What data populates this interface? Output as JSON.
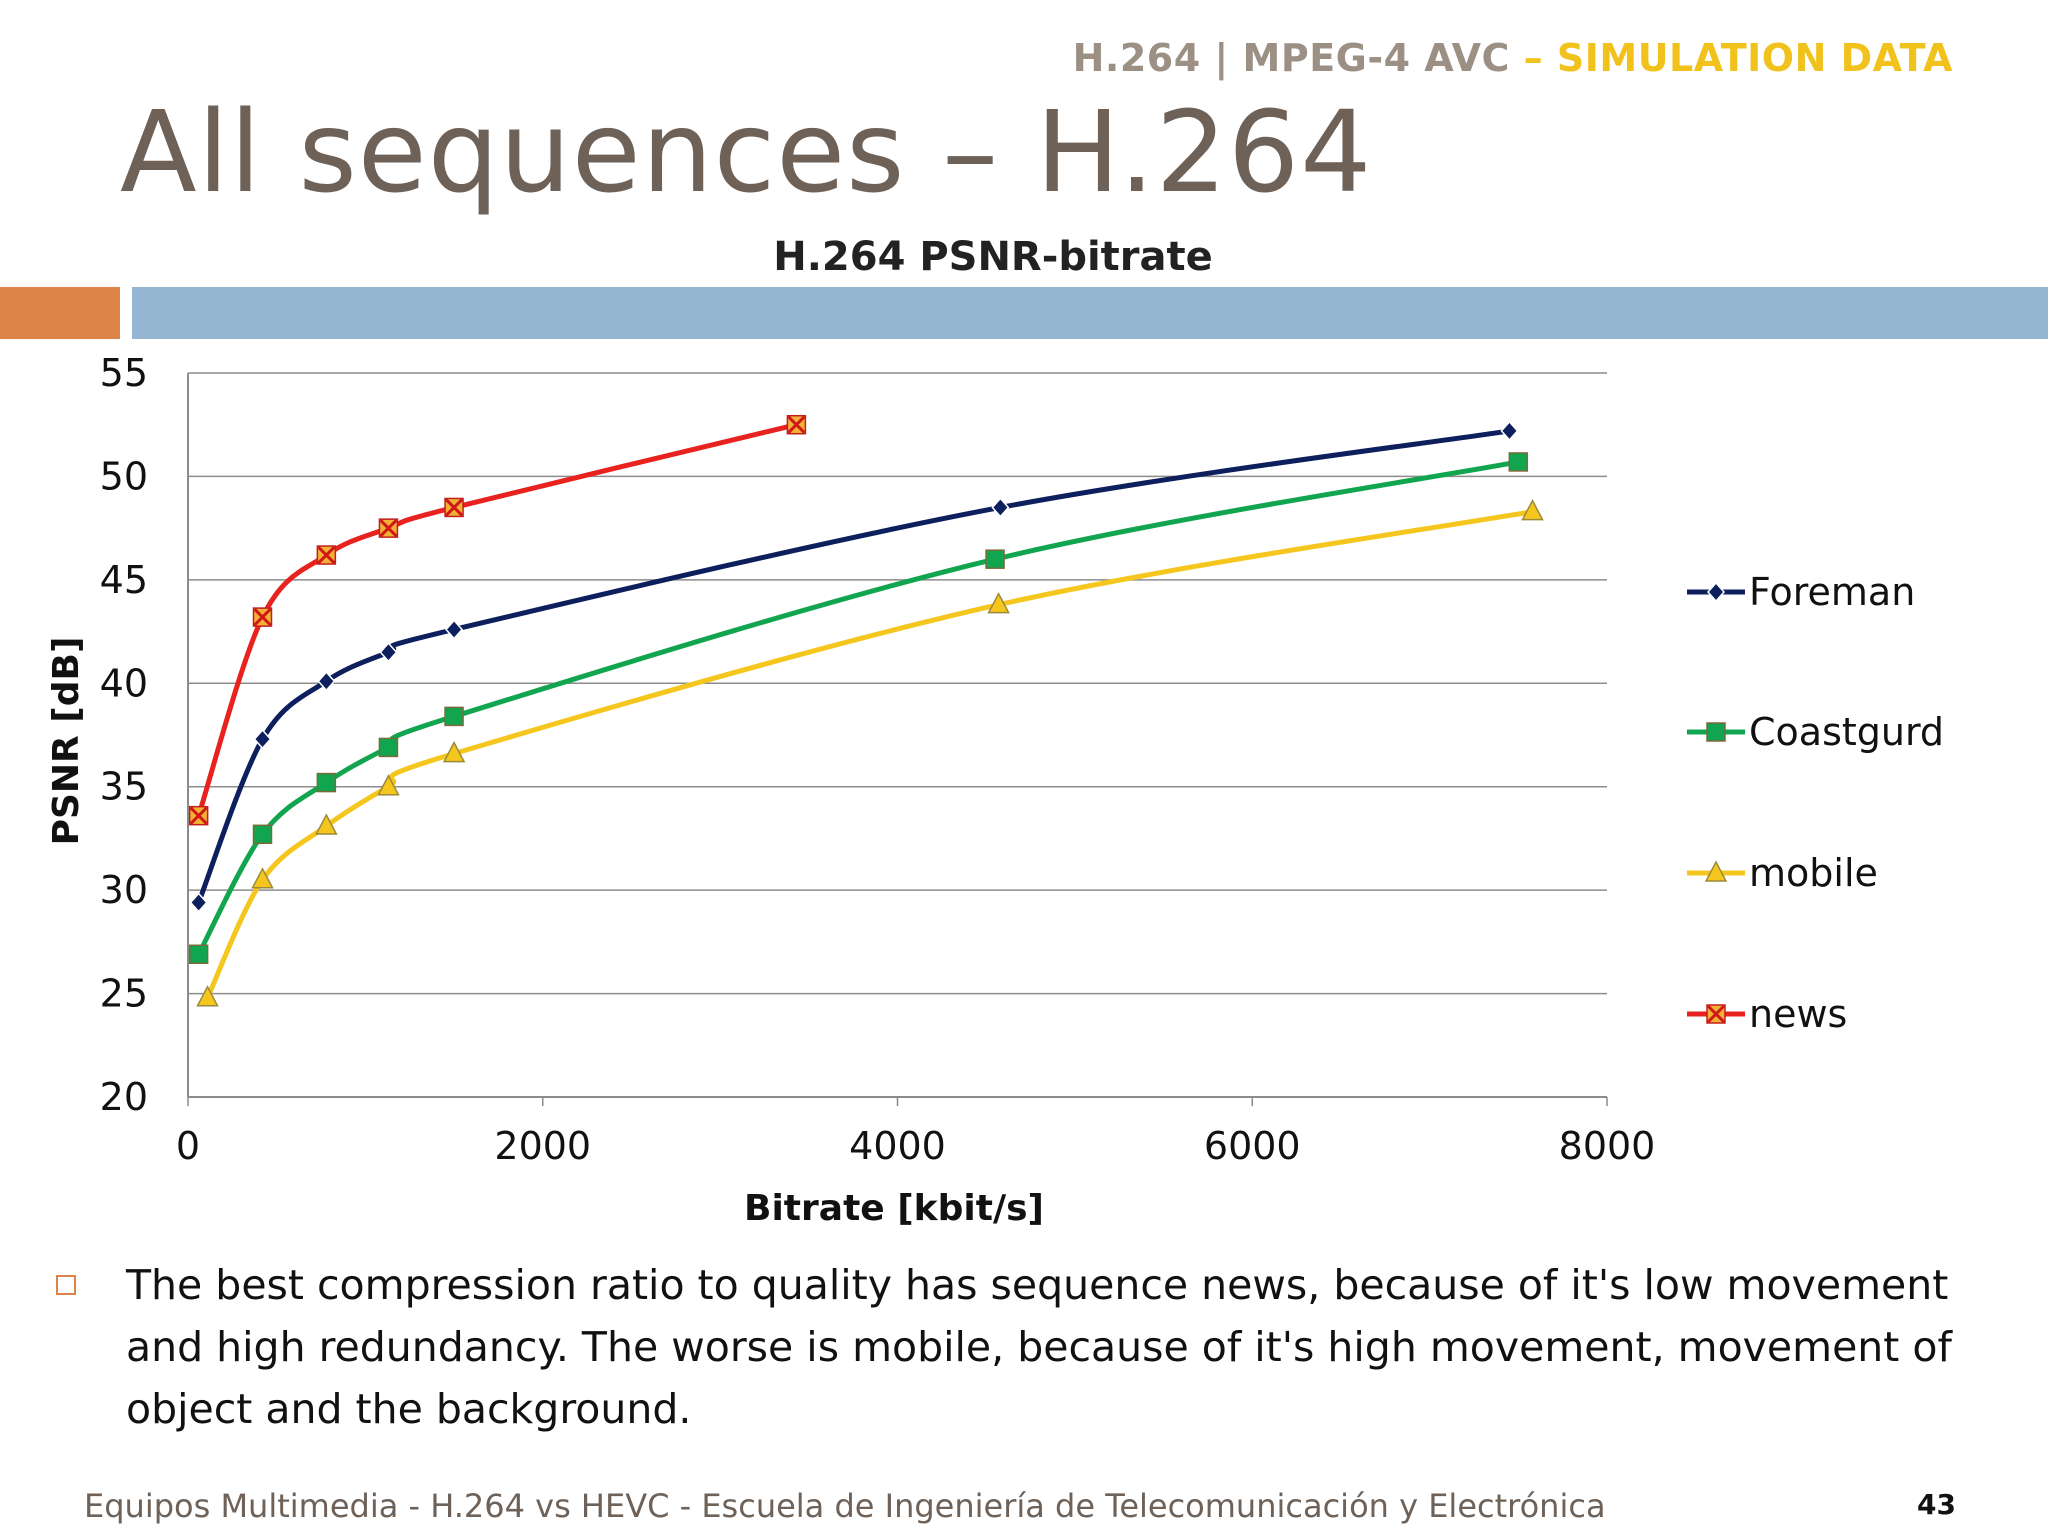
{
  "header": {
    "tag_main": "H.264 | MPEG-4 AVC",
    "tag_highlight": "– SIMULATION DATA",
    "title": "All sequences – H.264"
  },
  "colors": {
    "accent_orange": "#dd8548",
    "accent_blue": "#94b6d2",
    "title_grey": "#6e6158",
    "gold": "#f1c21b"
  },
  "chart_data": {
    "type": "line",
    "title": "H.264 PSNR-bitrate",
    "xlabel": "Bitrate [kbit/s]",
    "ylabel": "PSNR [dB]",
    "xlim": [
      0,
      8000
    ],
    "ylim": [
      20,
      55
    ],
    "xticks": [
      0,
      2000,
      4000,
      6000,
      8000
    ],
    "yticks": [
      20,
      25,
      30,
      35,
      40,
      45,
      50,
      55
    ],
    "grid": "horizontal",
    "legend_position": "right",
    "series": [
      {
        "name": "Foreman",
        "color": "#0d1f5c",
        "marker": "diamond",
        "x": [
          60,
          420,
          780,
          1130,
          1500,
          4580,
          7450
        ],
        "y": [
          29.4,
          37.3,
          40.1,
          41.5,
          42.6,
          48.5,
          52.2
        ]
      },
      {
        "name": "Coastgurd",
        "color": "#12a550",
        "marker": "square",
        "x": [
          60,
          420,
          780,
          1130,
          1500,
          4550,
          7500
        ],
        "y": [
          26.9,
          32.7,
          35.2,
          36.9,
          38.4,
          46.0,
          50.7
        ]
      },
      {
        "name": "mobile",
        "color": "#f5c61d",
        "marker": "triangle",
        "x": [
          110,
          420,
          780,
          1130,
          1500,
          4570,
          7580
        ],
        "y": [
          24.8,
          30.5,
          33.1,
          35.0,
          36.6,
          43.8,
          48.3
        ]
      },
      {
        "name": "news",
        "color": "#e8221f",
        "marker": "xbox",
        "x": [
          60,
          420,
          780,
          1130,
          1500,
          3430
        ],
        "y": [
          33.6,
          43.2,
          46.2,
          47.5,
          48.5,
          52.5
        ]
      }
    ]
  },
  "body": {
    "text": "The best compression ratio to quality has sequence news, because of it's low movement and high redundancy. The worse is mobile, because of it's high movement, movement of object and the background."
  },
  "footer": {
    "text": "Equipos Multimedia - H.264 vs HEVC - Escuela de Ingeniería de Telecomunicación y Electrónica",
    "page": "43"
  }
}
